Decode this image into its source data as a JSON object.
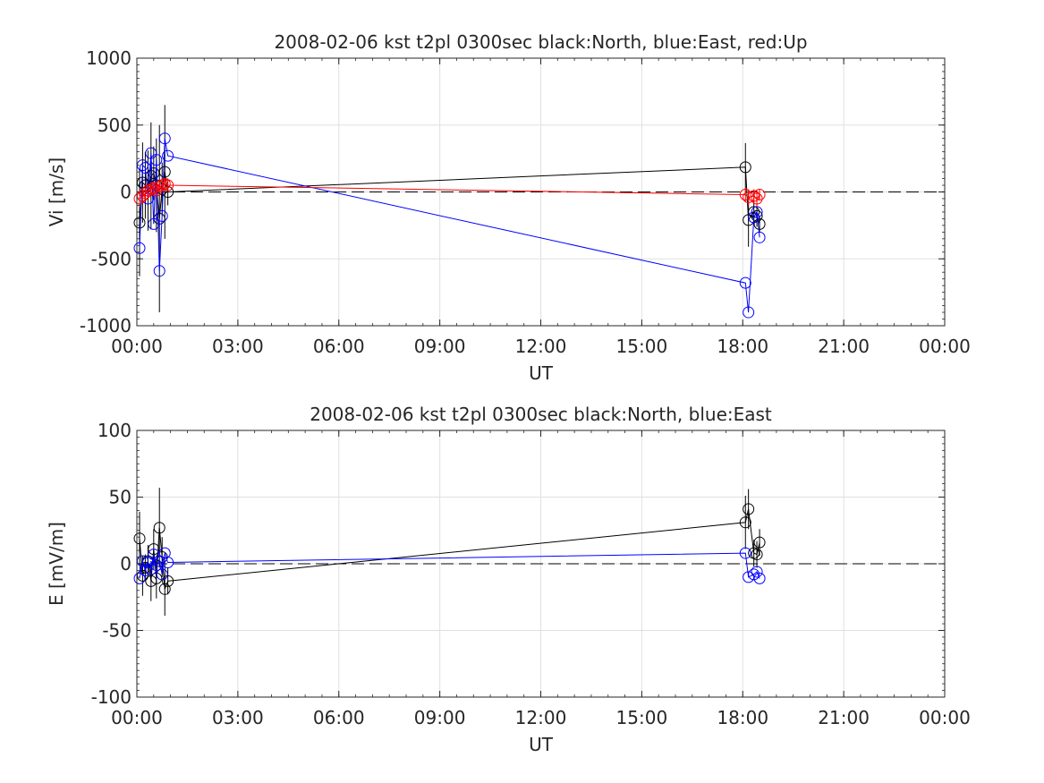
{
  "chart_data": [
    {
      "type": "line",
      "title": "2008-02-06 kst t2pl 0300sec black:North, blue:East, red:Up",
      "xlabel": "UT",
      "ylabel": "Vi [m/s]",
      "xlim": [
        0,
        24
      ],
      "ylim": [
        -1000,
        1000
      ],
      "xticks": [
        0,
        3,
        6,
        9,
        12,
        15,
        18,
        21,
        24
      ],
      "xtick_labels": [
        "00:00",
        "03:00",
        "06:00",
        "09:00",
        "12:00",
        "15:00",
        "18:00",
        "21:00",
        "00:00"
      ],
      "yticks": [
        -1000,
        -500,
        0,
        500,
        1000
      ],
      "ytick_labels": [
        "-1000",
        "-500",
        "0",
        "500",
        "1000"
      ],
      "grid": true,
      "reference_line": 0,
      "series": [
        {
          "color": "#000000",
          "x": [
            0.08,
            0.17,
            0.25,
            0.33,
            0.42,
            0.5,
            0.58,
            0.67,
            0.75,
            0.83,
            0.92,
            18.08,
            18.17,
            18.33,
            18.42,
            18.5
          ],
          "y": [
            -230,
            70,
            50,
            10,
            120,
            140,
            50,
            -200,
            20,
            150,
            0,
            185,
            -210,
            -150,
            -180,
            -240
          ],
          "err": [
            400,
            300,
            250,
            300,
            400,
            200,
            350,
            700,
            200,
            500,
            100,
            180,
            200,
            100,
            80,
            60
          ]
        },
        {
          "color": "#0000ff",
          "x": [
            0.08,
            0.17,
            0.25,
            0.33,
            0.42,
            0.5,
            0.58,
            0.67,
            0.75,
            0.83,
            0.92,
            18.08,
            18.17,
            18.33,
            18.42,
            18.5
          ],
          "y": [
            -420,
            200,
            180,
            -50,
            290,
            -240,
            240,
            -590,
            -180,
            400,
            270,
            -680,
            -900,
            -190,
            -150,
            -340
          ],
          "err": [
            0,
            0,
            0,
            0,
            0,
            0,
            0,
            0,
            0,
            0,
            0,
            0,
            0,
            0,
            0,
            0
          ]
        },
        {
          "color": "#ff0000",
          "x": [
            0.08,
            0.17,
            0.25,
            0.33,
            0.42,
            0.5,
            0.58,
            0.67,
            0.75,
            0.83,
            0.92,
            18.08,
            18.17,
            18.33,
            18.42,
            18.5
          ],
          "y": [
            -50,
            -30,
            -10,
            10,
            20,
            30,
            10,
            40,
            50,
            60,
            50,
            -20,
            -40,
            -30,
            -50,
            -20
          ],
          "err": [
            40,
            40,
            40,
            40,
            40,
            40,
            40,
            40,
            40,
            40,
            40,
            50,
            60,
            50,
            60,
            40
          ]
        }
      ]
    },
    {
      "type": "line",
      "title": "2008-02-06 kst t2pl 0300sec black:North, blue:East",
      "xlabel": "UT",
      "ylabel": "E [mV/m]",
      "xlim": [
        0,
        24
      ],
      "ylim": [
        -100,
        100
      ],
      "xticks": [
        0,
        3,
        6,
        9,
        12,
        15,
        18,
        21,
        24
      ],
      "xtick_labels": [
        "00:00",
        "03:00",
        "06:00",
        "09:00",
        "12:00",
        "15:00",
        "18:00",
        "21:00",
        "00:00"
      ],
      "yticks": [
        -100,
        -50,
        0,
        50,
        100
      ],
      "ytick_labels": [
        "-100",
        "-50",
        "0",
        "50",
        "100"
      ],
      "grid": true,
      "reference_line": 0,
      "series": [
        {
          "color": "#000000",
          "x": [
            0.08,
            0.17,
            0.25,
            0.33,
            0.42,
            0.5,
            0.58,
            0.67,
            0.75,
            0.83,
            0.92,
            18.08,
            18.17,
            18.33,
            18.42,
            18.5
          ],
          "y": [
            19,
            -9,
            -3,
            2,
            -13,
            11,
            -11,
            27,
            5,
            -19,
            -13,
            31,
            41,
            8,
            7,
            16
          ],
          "err": [
            20,
            15,
            10,
            12,
            15,
            15,
            15,
            30,
            15,
            20,
            10,
            20,
            15,
            10,
            10,
            10
          ]
        },
        {
          "color": "#0000ff",
          "x": [
            0.08,
            0.17,
            0.25,
            0.33,
            0.42,
            0.5,
            0.58,
            0.67,
            0.75,
            0.83,
            0.92,
            18.08,
            18.17,
            18.33,
            18.42,
            18.5
          ],
          "y": [
            -11,
            2,
            -5,
            1,
            -4,
            7,
            -1,
            2,
            -8,
            8,
            1,
            8,
            -10,
            -8,
            -6,
            -11
          ],
          "err": [
            0,
            0,
            0,
            0,
            0,
            0,
            0,
            0,
            0,
            0,
            0,
            0,
            0,
            0,
            0,
            0
          ]
        }
      ]
    }
  ]
}
